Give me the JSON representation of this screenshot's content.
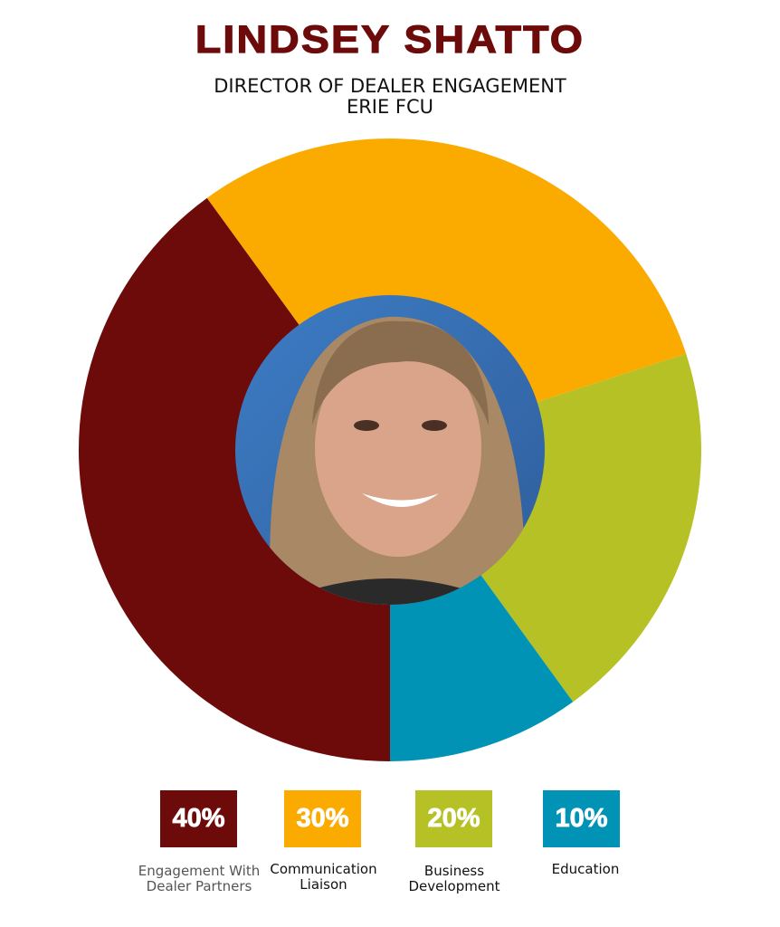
{
  "header": {
    "name": "LINDSEY SHATTO",
    "title": "DIRECTOR OF DEALER ENGAGEMENT",
    "org": "ERIE FCU"
  },
  "chart_data": {
    "type": "pie",
    "variant": "donut",
    "start": "bottom, clockwise",
    "center_image": "portrait photo",
    "categories": [
      "Engagement With Dealer Partners",
      "Communication Liaison",
      "Business Development",
      "Education"
    ],
    "values": [
      40,
      30,
      20,
      10
    ],
    "labels": [
      "40%",
      "30%",
      "20%",
      "10%"
    ],
    "colors": [
      "#6d0a0a",
      "#fbab00",
      "#b5c124",
      "#0093b5"
    ],
    "legend_placement": "bottom"
  }
}
